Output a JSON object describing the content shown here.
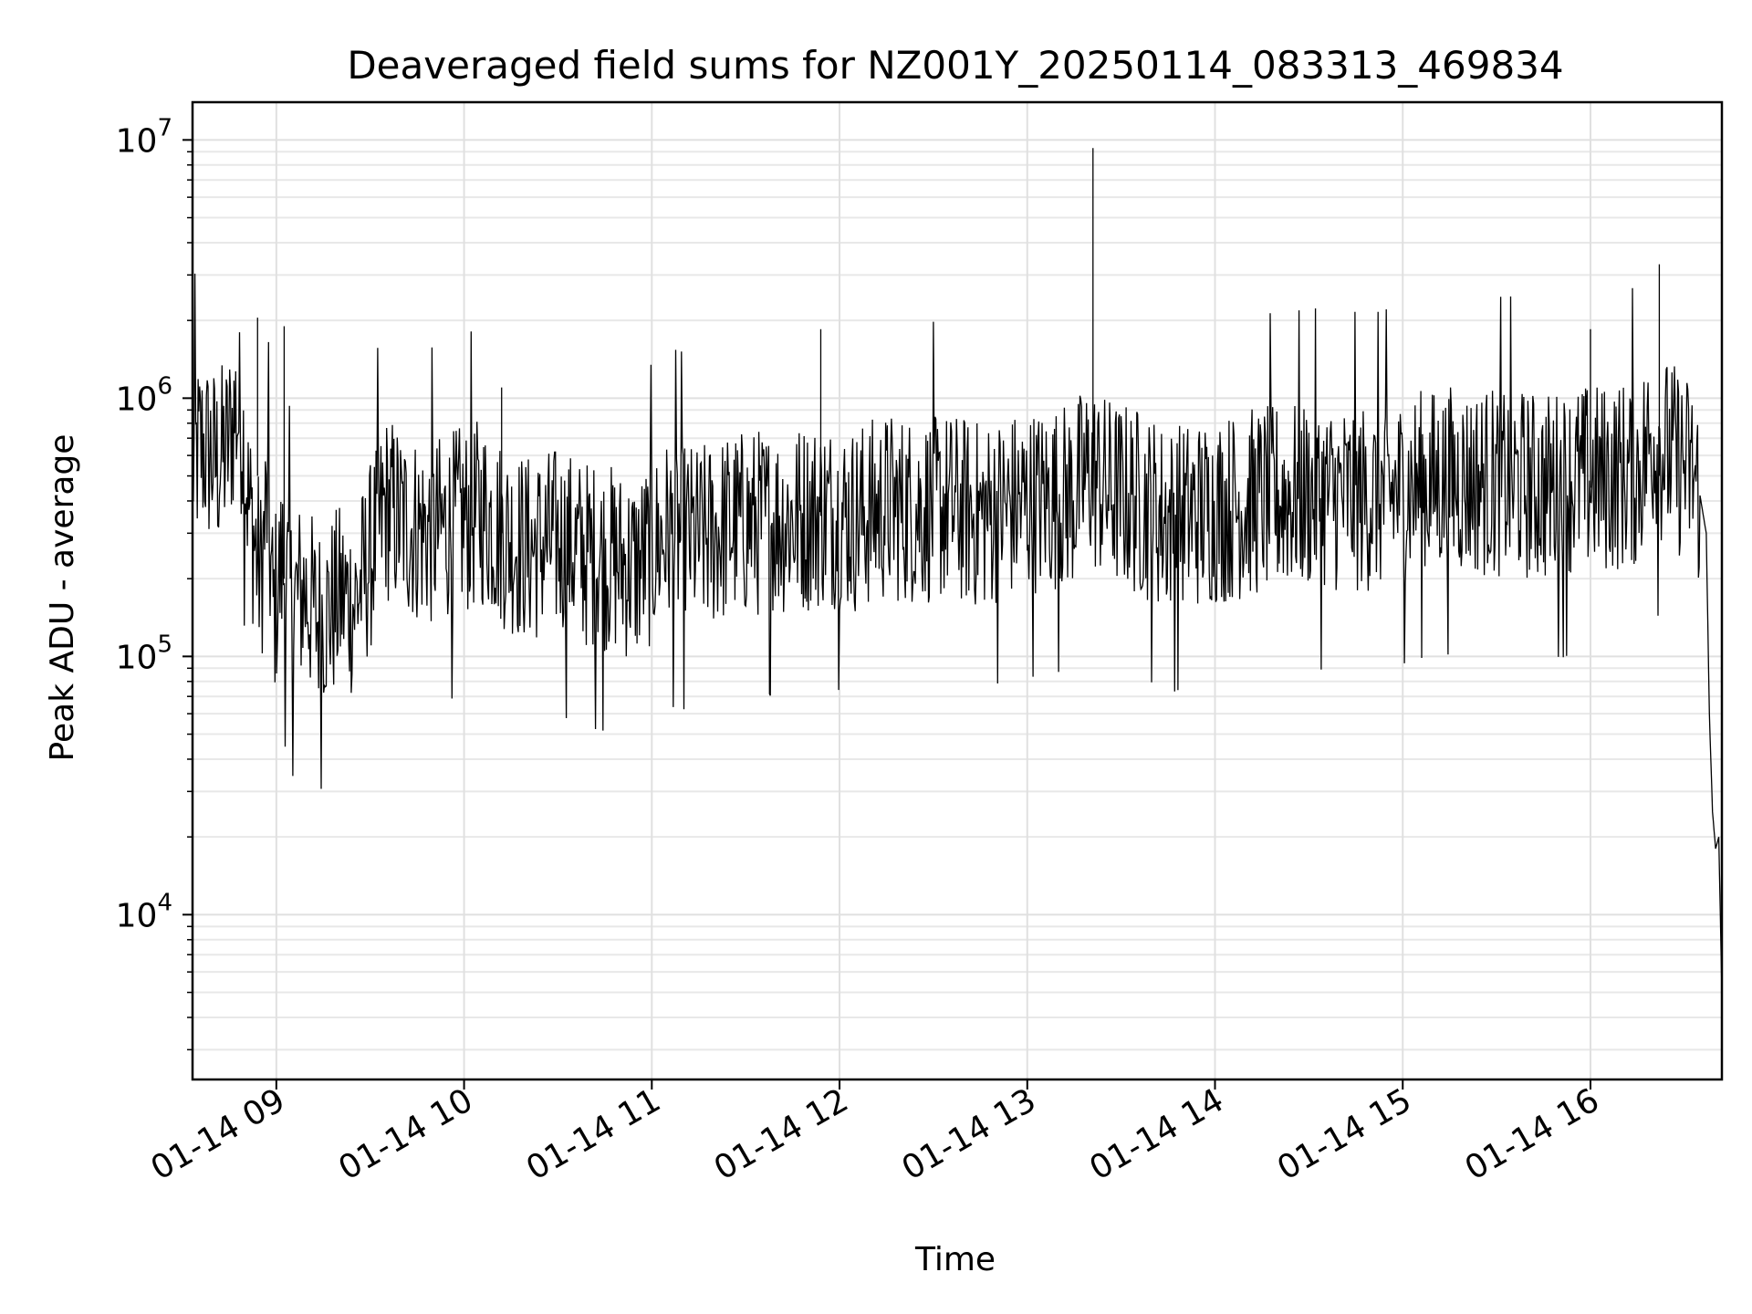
{
  "chart_data": {
    "type": "line",
    "title": "Deaveraged field sums for NZ001Y_20250114_083313_469834",
    "xlabel": "Time",
    "ylabel": "Peak ADU - average",
    "x_scale": "time",
    "y_scale": "log",
    "xlim": [
      "2025-01-14T08:33:13",
      "2025-01-14T16:42:00"
    ],
    "ylim": [
      2300,
      14000000
    ],
    "x_ticks": [
      {
        "label": "01-14 09",
        "value": "2025-01-14T09:00:00"
      },
      {
        "label": "01-14 10",
        "value": "2025-01-14T10:00:00"
      },
      {
        "label": "01-14 11",
        "value": "2025-01-14T11:00:00"
      },
      {
        "label": "01-14 12",
        "value": "2025-01-14T12:00:00"
      },
      {
        "label": "01-14 13",
        "value": "2025-01-14T13:00:00"
      },
      {
        "label": "01-14 14",
        "value": "2025-01-14T14:00:00"
      },
      {
        "label": "01-14 15",
        "value": "2025-01-14T15:00:00"
      },
      {
        "label": "01-14 16",
        "value": "2025-01-14T16:00:00"
      }
    ],
    "y_ticks": [
      {
        "base": "10",
        "exp": "4",
        "value": 10000
      },
      {
        "base": "10",
        "exp": "5",
        "value": 100000
      },
      {
        "base": "10",
        "exp": "6",
        "value": 1000000
      },
      {
        "base": "10",
        "exp": "7",
        "value": 10000000
      }
    ],
    "grid": true,
    "line_color": "#000000",
    "series": [
      {
        "x": [
          "2025-01-14T08:33:13",
          "2025-01-14T08:36:00",
          "2025-01-14T08:39:00",
          "2025-01-14T08:41:00",
          "2025-01-14T08:44:00",
          "2025-01-14T08:47:00",
          "2025-01-14T08:49:00",
          "2025-01-14T08:51:00",
          "2025-01-14T08:53:00",
          "2025-01-14T08:55:00",
          "2025-01-14T08:57:00",
          "2025-01-14T08:59:00",
          "2025-01-14T09:02:00",
          "2025-01-14T09:05:00",
          "2025-01-14T09:09:00",
          "2025-01-14T09:13:00",
          "2025-01-14T09:17:00",
          "2025-01-14T09:21:00",
          "2025-01-14T09:25:00",
          "2025-01-14T09:29:00",
          "2025-01-14T09:35:00",
          "2025-01-14T09:42:00",
          "2025-01-14T09:50:00",
          "2025-01-14T09:58:00",
          "2025-01-14T10:06:00",
          "2025-01-14T10:12:00",
          "2025-01-14T10:20:00",
          "2025-01-14T10:30:00",
          "2025-01-14T10:38:00",
          "2025-01-14T10:46:00",
          "2025-01-14T10:55:00",
          "2025-01-14T11:05:00",
          "2025-01-14T11:15:00",
          "2025-01-14T11:25:00",
          "2025-01-14T11:35:00",
          "2025-01-14T11:45:00",
          "2025-01-14T11:55:00",
          "2025-01-14T12:05:00",
          "2025-01-14T12:15:00",
          "2025-01-14T12:25:00",
          "2025-01-14T12:35:00",
          "2025-01-14T12:45:00",
          "2025-01-14T12:55:00",
          "2025-01-14T13:05:00",
          "2025-01-14T13:15:00",
          "2025-01-14T13:20:00",
          "2025-01-14T13:22:00",
          "2025-01-14T13:25:00",
          "2025-01-14T13:35:00",
          "2025-01-14T13:45:00",
          "2025-01-14T13:55:00",
          "2025-01-14T14:05:00",
          "2025-01-14T14:15:00",
          "2025-01-14T14:25:00",
          "2025-01-14T14:35:00",
          "2025-01-14T14:45:00",
          "2025-01-14T14:55:00",
          "2025-01-14T15:05:00",
          "2025-01-14T15:15:00",
          "2025-01-14T15:25:00",
          "2025-01-14T15:35:00",
          "2025-01-14T15:45:00",
          "2025-01-14T15:55:00",
          "2025-01-14T16:05:00",
          "2025-01-14T16:15:00",
          "2025-01-14T16:20:00",
          "2025-01-14T16:25:00",
          "2025-01-14T16:30:00",
          "2025-01-14T16:33:00",
          "2025-01-14T16:35:00",
          "2025-01-14T16:37:00",
          "2025-01-14T16:38:00",
          "2025-01-14T16:39:00",
          "2025-01-14T16:40:00",
          "2025-01-14T16:41:00",
          "2025-01-14T16:42:00"
        ],
        "y": [
          550000,
          650000,
          600000,
          560000,
          620000,
          900000,
          800000,
          400000,
          280000,
          200000,
          400000,
          150000,
          230000,
          160000,
          180000,
          140000,
          150000,
          170000,
          160000,
          220000,
          380000,
          320000,
          300000,
          330000,
          360000,
          300000,
          260000,
          280000,
          250000,
          240000,
          220000,
          300000,
          280000,
          320000,
          330000,
          340000,
          360000,
          340000,
          380000,
          370000,
          380000,
          350000,
          380000,
          400000,
          420000,
          520000,
          480000,
          440000,
          400000,
          340000,
          360000,
          380000,
          400000,
          420000,
          420000,
          410000,
          420000,
          460000,
          480000,
          480000,
          470000,
          450000,
          480000,
          490000,
          520000,
          700000,
          600000,
          550000,
          500000,
          420000,
          300000,
          60000,
          25000,
          18000,
          20000,
          5000
        ]
      }
    ]
  }
}
